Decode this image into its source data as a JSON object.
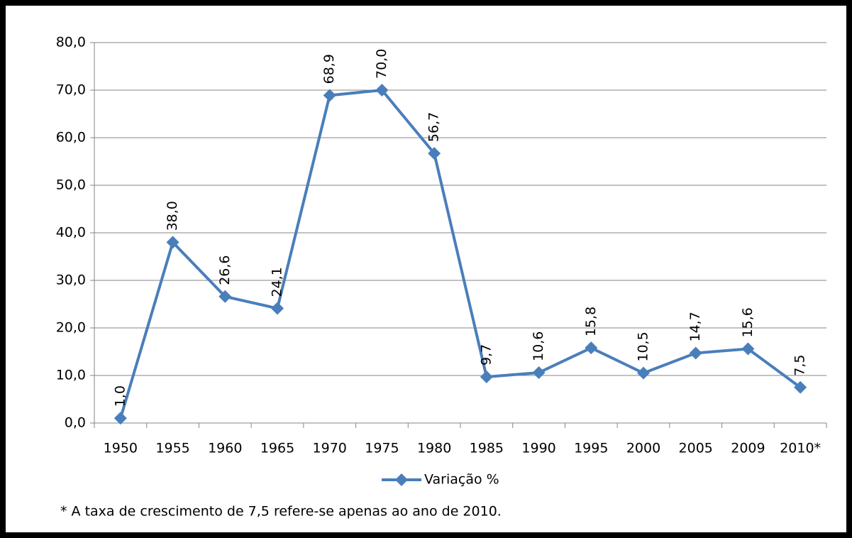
{
  "chart_data": {
    "type": "line",
    "categories": [
      "1950",
      "1955",
      "1960",
      "1965",
      "1970",
      "1975",
      "1980",
      "1985",
      "1990",
      "1995",
      "2000",
      "2005",
      "2009",
      "2010*"
    ],
    "series": [
      {
        "name": "Variação %",
        "color": "#4a7ebb",
        "values": [
          1.0,
          38.0,
          26.6,
          24.1,
          68.9,
          70.0,
          56.7,
          9.7,
          10.6,
          15.8,
          10.5,
          14.7,
          15.6,
          7.5
        ],
        "value_labels": [
          "1,0",
          "38,0",
          "26,6",
          "24,1",
          "68,9",
          "70,0",
          "56,7",
          "9,7",
          "10,6",
          "15,8",
          "10,5",
          "14,7",
          "15,6",
          "7,5"
        ]
      }
    ],
    "ylim": [
      0,
      80
    ],
    "yticks": [
      {
        "value": 0,
        "label": "0,0"
      },
      {
        "value": 10,
        "label": "10,0"
      },
      {
        "value": 20,
        "label": "20,0"
      },
      {
        "value": 30,
        "label": "30,0"
      },
      {
        "value": 40,
        "label": "40,0"
      },
      {
        "value": 50,
        "label": "50,0"
      },
      {
        "value": 60,
        "label": "60,0"
      },
      {
        "value": 70,
        "label": "70,0"
      },
      {
        "value": 80,
        "label": "80,0"
      }
    ],
    "grid": true,
    "legend": "bottom",
    "footnote": "* A taxa de crescimento de 7,5 refere-se  apenas ao ano de 2010."
  }
}
